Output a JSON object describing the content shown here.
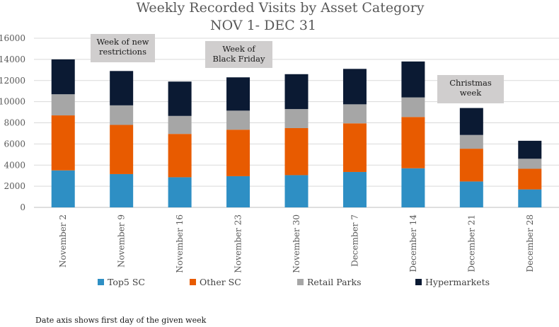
{
  "chart_data": {
    "type": "bar",
    "stacked": true,
    "title": "Weekly Recorded Visits by Asset Category",
    "subtitle": "NOV 1- DEC 31",
    "categories": [
      "November 2",
      "November 9",
      "November 16",
      "November 23",
      "November 30",
      "December 7",
      "December 14",
      "December 21",
      "December 28"
    ],
    "series": [
      {
        "name": "Top5 SC",
        "color": "#2E8FC4",
        "values": [
          3500,
          3150,
          2850,
          2950,
          3050,
          3350,
          3700,
          2450,
          1700
        ]
      },
      {
        "name": "Other SC",
        "color": "#E85B00",
        "values": [
          5200,
          4650,
          4100,
          4400,
          4450,
          4600,
          4850,
          3100,
          1950
        ]
      },
      {
        "name": "Retail Parks",
        "color": "#A6A6A6",
        "values": [
          2000,
          1850,
          1700,
          1800,
          1800,
          1800,
          1850,
          1300,
          950
        ]
      },
      {
        "name": "Hypermarkets",
        "color": "#0B1A33",
        "values": [
          3300,
          3250,
          3250,
          3150,
          3300,
          3350,
          3400,
          2550,
          1700
        ]
      }
    ],
    "ylim": [
      0,
      16000
    ],
    "yticks": [
      0,
      2000,
      4000,
      6000,
      8000,
      10000,
      12000,
      14000,
      16000
    ],
    "grid": true,
    "legend_position": "bottom",
    "annotations": [
      {
        "category": "November 9",
        "lines": [
          "Week of new",
          "restrictions"
        ]
      },
      {
        "category": "November 23",
        "lines": [
          "Week of",
          "Black Friday"
        ]
      },
      {
        "category": "December 21",
        "lines": [
          "Christmas",
          "week"
        ]
      }
    ]
  },
  "footnote": "Date axis shows first day of the given week"
}
